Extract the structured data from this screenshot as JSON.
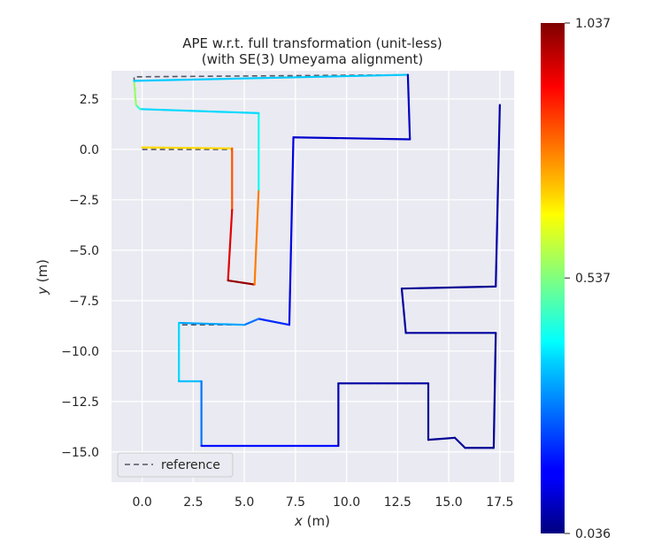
{
  "chart_data": {
    "type": "line",
    "title": "APE w.r.t. full transformation (unit-less)",
    "subtitle": "(with SE(3) Umeyama alignment)",
    "xlabel_var": "x",
    "xlabel_unit": "(m)",
    "ylabel_var": "y",
    "ylabel_unit": "(m)",
    "xlim": [
      -1.5,
      18.2
    ],
    "ylim": [
      -16.5,
      3.9
    ],
    "xticks": [
      0.0,
      2.5,
      5.0,
      7.5,
      10.0,
      12.5,
      15.0,
      17.5
    ],
    "xtick_labels": [
      "0.0",
      "2.5",
      "5.0",
      "7.5",
      "10.0",
      "12.5",
      "15.0",
      "17.5"
    ],
    "yticks": [
      2.5,
      0.0,
      -2.5,
      -5.0,
      -7.5,
      -10.0,
      -12.5,
      -15.0
    ],
    "ytick_labels": [
      "2.5",
      "0.0",
      "−2.5",
      "−5.0",
      "−7.5",
      "−10.0",
      "−12.5",
      "−15.0"
    ],
    "grid": true,
    "legend": {
      "entries": [
        "reference"
      ],
      "placement": "lower-left"
    },
    "colorbar": {
      "min": 0.036,
      "max": 1.037,
      "tick_values": [
        1.037,
        0.537,
        0.036
      ],
      "tick_labels": [
        "1.037",
        "0.537",
        "0.036"
      ],
      "colormap": "jet"
    },
    "series": [
      {
        "role": "reference",
        "x": [
          0.0,
          4.4,
          4.4,
          4.2,
          5.5,
          5.7,
          5.7,
          -0.1,
          -0.3,
          -0.4,
          13.0,
          13.1,
          7.4,
          7.2,
          5.7,
          5.0,
          1.8,
          1.8,
          2.9,
          2.9,
          9.6,
          9.6,
          14.0,
          14.0,
          15.3,
          15.8,
          17.2,
          17.3,
          12.9,
          12.7,
          17.3,
          17.5
        ],
        "y": [
          0.0,
          0.0,
          -3.0,
          -6.5,
          -6.7,
          -2.0,
          1.8,
          2.0,
          2.2,
          3.6,
          3.7,
          0.5,
          0.6,
          -8.7,
          -8.4,
          -8.7,
          -8.7,
          -11.5,
          -11.5,
          -14.7,
          -14.7,
          -11.6,
          -11.6,
          -14.4,
          -14.3,
          -14.8,
          -14.8,
          -9.1,
          -9.1,
          -6.9,
          -6.8,
          2.3
        ],
        "errors": []
      },
      {
        "role": "estimate",
        "x": [
          0.0,
          4.4,
          4.4,
          4.2,
          5.5,
          5.7,
          5.7,
          -0.1,
          -0.3,
          -0.4,
          13.0,
          13.1,
          7.4,
          7.2,
          5.7,
          5.0,
          1.8,
          1.8,
          2.9,
          2.9,
          9.6,
          9.6,
          14.0,
          14.0,
          15.3,
          15.8,
          17.2,
          17.3,
          12.9,
          12.7,
          17.3,
          17.5
        ],
        "y": [
          0.1,
          0.05,
          -3.0,
          -6.5,
          -6.7,
          -2.0,
          1.8,
          2.0,
          2.2,
          3.4,
          3.7,
          0.5,
          0.6,
          -8.7,
          -8.4,
          -8.7,
          -8.6,
          -11.5,
          -11.5,
          -14.7,
          -14.7,
          -11.6,
          -11.6,
          -14.4,
          -14.3,
          -14.8,
          -14.8,
          -9.1,
          -9.1,
          -6.9,
          -6.8,
          2.2
        ],
        "errors": [
          0.62,
          0.78,
          0.88,
          1.0,
          1.03,
          0.55,
          0.3,
          0.45,
          0.5,
          0.62,
          0.1,
          0.1,
          0.12,
          0.15,
          0.25,
          0.3,
          0.35,
          0.4,
          0.3,
          0.25,
          0.1,
          0.08,
          0.06,
          0.05,
          0.06,
          0.06,
          0.05,
          0.06,
          0.07,
          0.06,
          0.05,
          0.1
        ]
      }
    ]
  }
}
